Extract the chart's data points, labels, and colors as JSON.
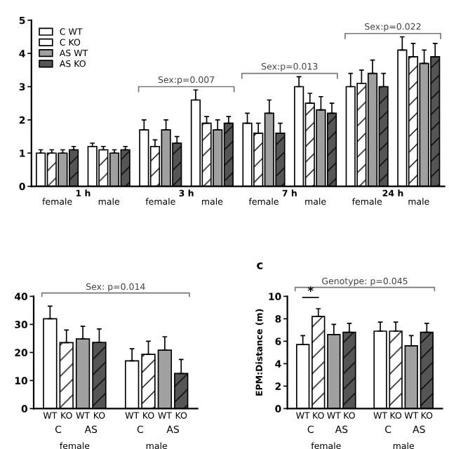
{
  "chart_data": [
    {
      "type": "bar",
      "categories": [
        "female",
        "male",
        "female",
        "male",
        "female",
        "male",
        "female",
        "male"
      ],
      "series": [
        {
          "name": "C WT",
          "color": "#ffffff",
          "values": [
            1.0,
            1.2,
            1.7,
            2.6,
            1.9,
            3.0,
            3.0,
            4.1
          ],
          "errors": [
            0.1,
            0.1,
            0.3,
            0.3,
            0.3,
            0.3,
            0.4,
            0.4
          ]
        },
        {
          "name": "C KO",
          "color": "#ffffff",
          "values": [
            1.0,
            1.1,
            1.2,
            1.9,
            1.6,
            2.5,
            3.1,
            3.9
          ],
          "errors": [
            0.1,
            0.1,
            0.2,
            0.2,
            0.3,
            0.3,
            0.4,
            0.4
          ]
        },
        {
          "name": "AS WT",
          "color": "#a0a0a0",
          "values": [
            1.0,
            1.0,
            1.7,
            1.7,
            2.2,
            2.3,
            3.4,
            3.7
          ],
          "errors": [
            0.1,
            0.1,
            0.3,
            0.3,
            0.4,
            0.4,
            0.4,
            0.4
          ]
        },
        {
          "name": "AS KO",
          "color": "#555555",
          "values": [
            1.1,
            1.1,
            1.3,
            1.9,
            1.6,
            2.2,
            3.0,
            3.9
          ],
          "errors": [
            0.1,
            0.1,
            0.2,
            0.2,
            0.3,
            0.3,
            0.4,
            0.4
          ]
        }
      ],
      "ylim": [
        0,
        5
      ],
      "yticks": [
        0,
        1,
        2,
        3,
        4,
        5
      ],
      "legend": "top left",
      "annotations": [
        "1 h",
        "3 h",
        "7 h",
        "24 h",
        "Sex:p=0.007",
        "Sex:p=0.013",
        "Sex:p=0.022"
      ]
    },
    {
      "type": "bar",
      "categories": [
        "female",
        "male"
      ],
      "series": [
        {
          "color": "#ffffff",
          "values": [
            32,
            17
          ],
          "errors": [
            4.5,
            4.3
          ]
        },
        {
          "color": "#ffffff",
          "values": [
            23.5,
            19.3
          ],
          "errors": [
            4.5,
            4.7
          ]
        },
        {
          "color": "#a0a0a0",
          "values": [
            24.8,
            20.8
          ],
          "errors": [
            4.5,
            4.8
          ]
        },
        {
          "color": "#555555",
          "values": [
            23.6,
            12.5
          ],
          "errors": [
            4.8,
            5
          ]
        }
      ],
      "ylim": [
        0,
        40
      ],
      "yticks": [
        0,
        10,
        20,
        30,
        40
      ],
      "annotations": [
        "Sex: p=0.014",
        "WT",
        "KO",
        "WT",
        "KO",
        "C",
        "AS",
        "WT",
        "KO",
        "WT",
        "KO",
        "C",
        "AS"
      ]
    },
    {
      "type": "bar",
      "title": "c",
      "ylabel": "EPM:Distance (m)",
      "categories": [
        "female",
        "male"
      ],
      "series": [
        {
          "color": "#ffffff",
          "values": [
            5.7,
            6.9
          ],
          "errors": [
            0.8,
            0.8
          ]
        },
        {
          "color": "#ffffff",
          "values": [
            8.2,
            6.9
          ],
          "errors": [
            0.7,
            0.8
          ]
        },
        {
          "color": "#a0a0a0",
          "values": [
            6.6,
            5.6
          ],
          "errors": [
            0.9,
            0.9
          ]
        },
        {
          "color": "#555555",
          "values": [
            6.8,
            6.8
          ],
          "errors": [
            0.8,
            0.8
          ]
        }
      ],
      "ylim": [
        0,
        10
      ],
      "yticks": [
        0,
        2,
        4,
        6,
        8,
        10
      ],
      "annotations": [
        "Genotype: p=0.045",
        "*",
        "WT",
        "KO",
        "WT",
        "KO",
        "C",
        "AS",
        "WT",
        "KO",
        "WT",
        "KO",
        "C",
        "AS"
      ]
    }
  ]
}
